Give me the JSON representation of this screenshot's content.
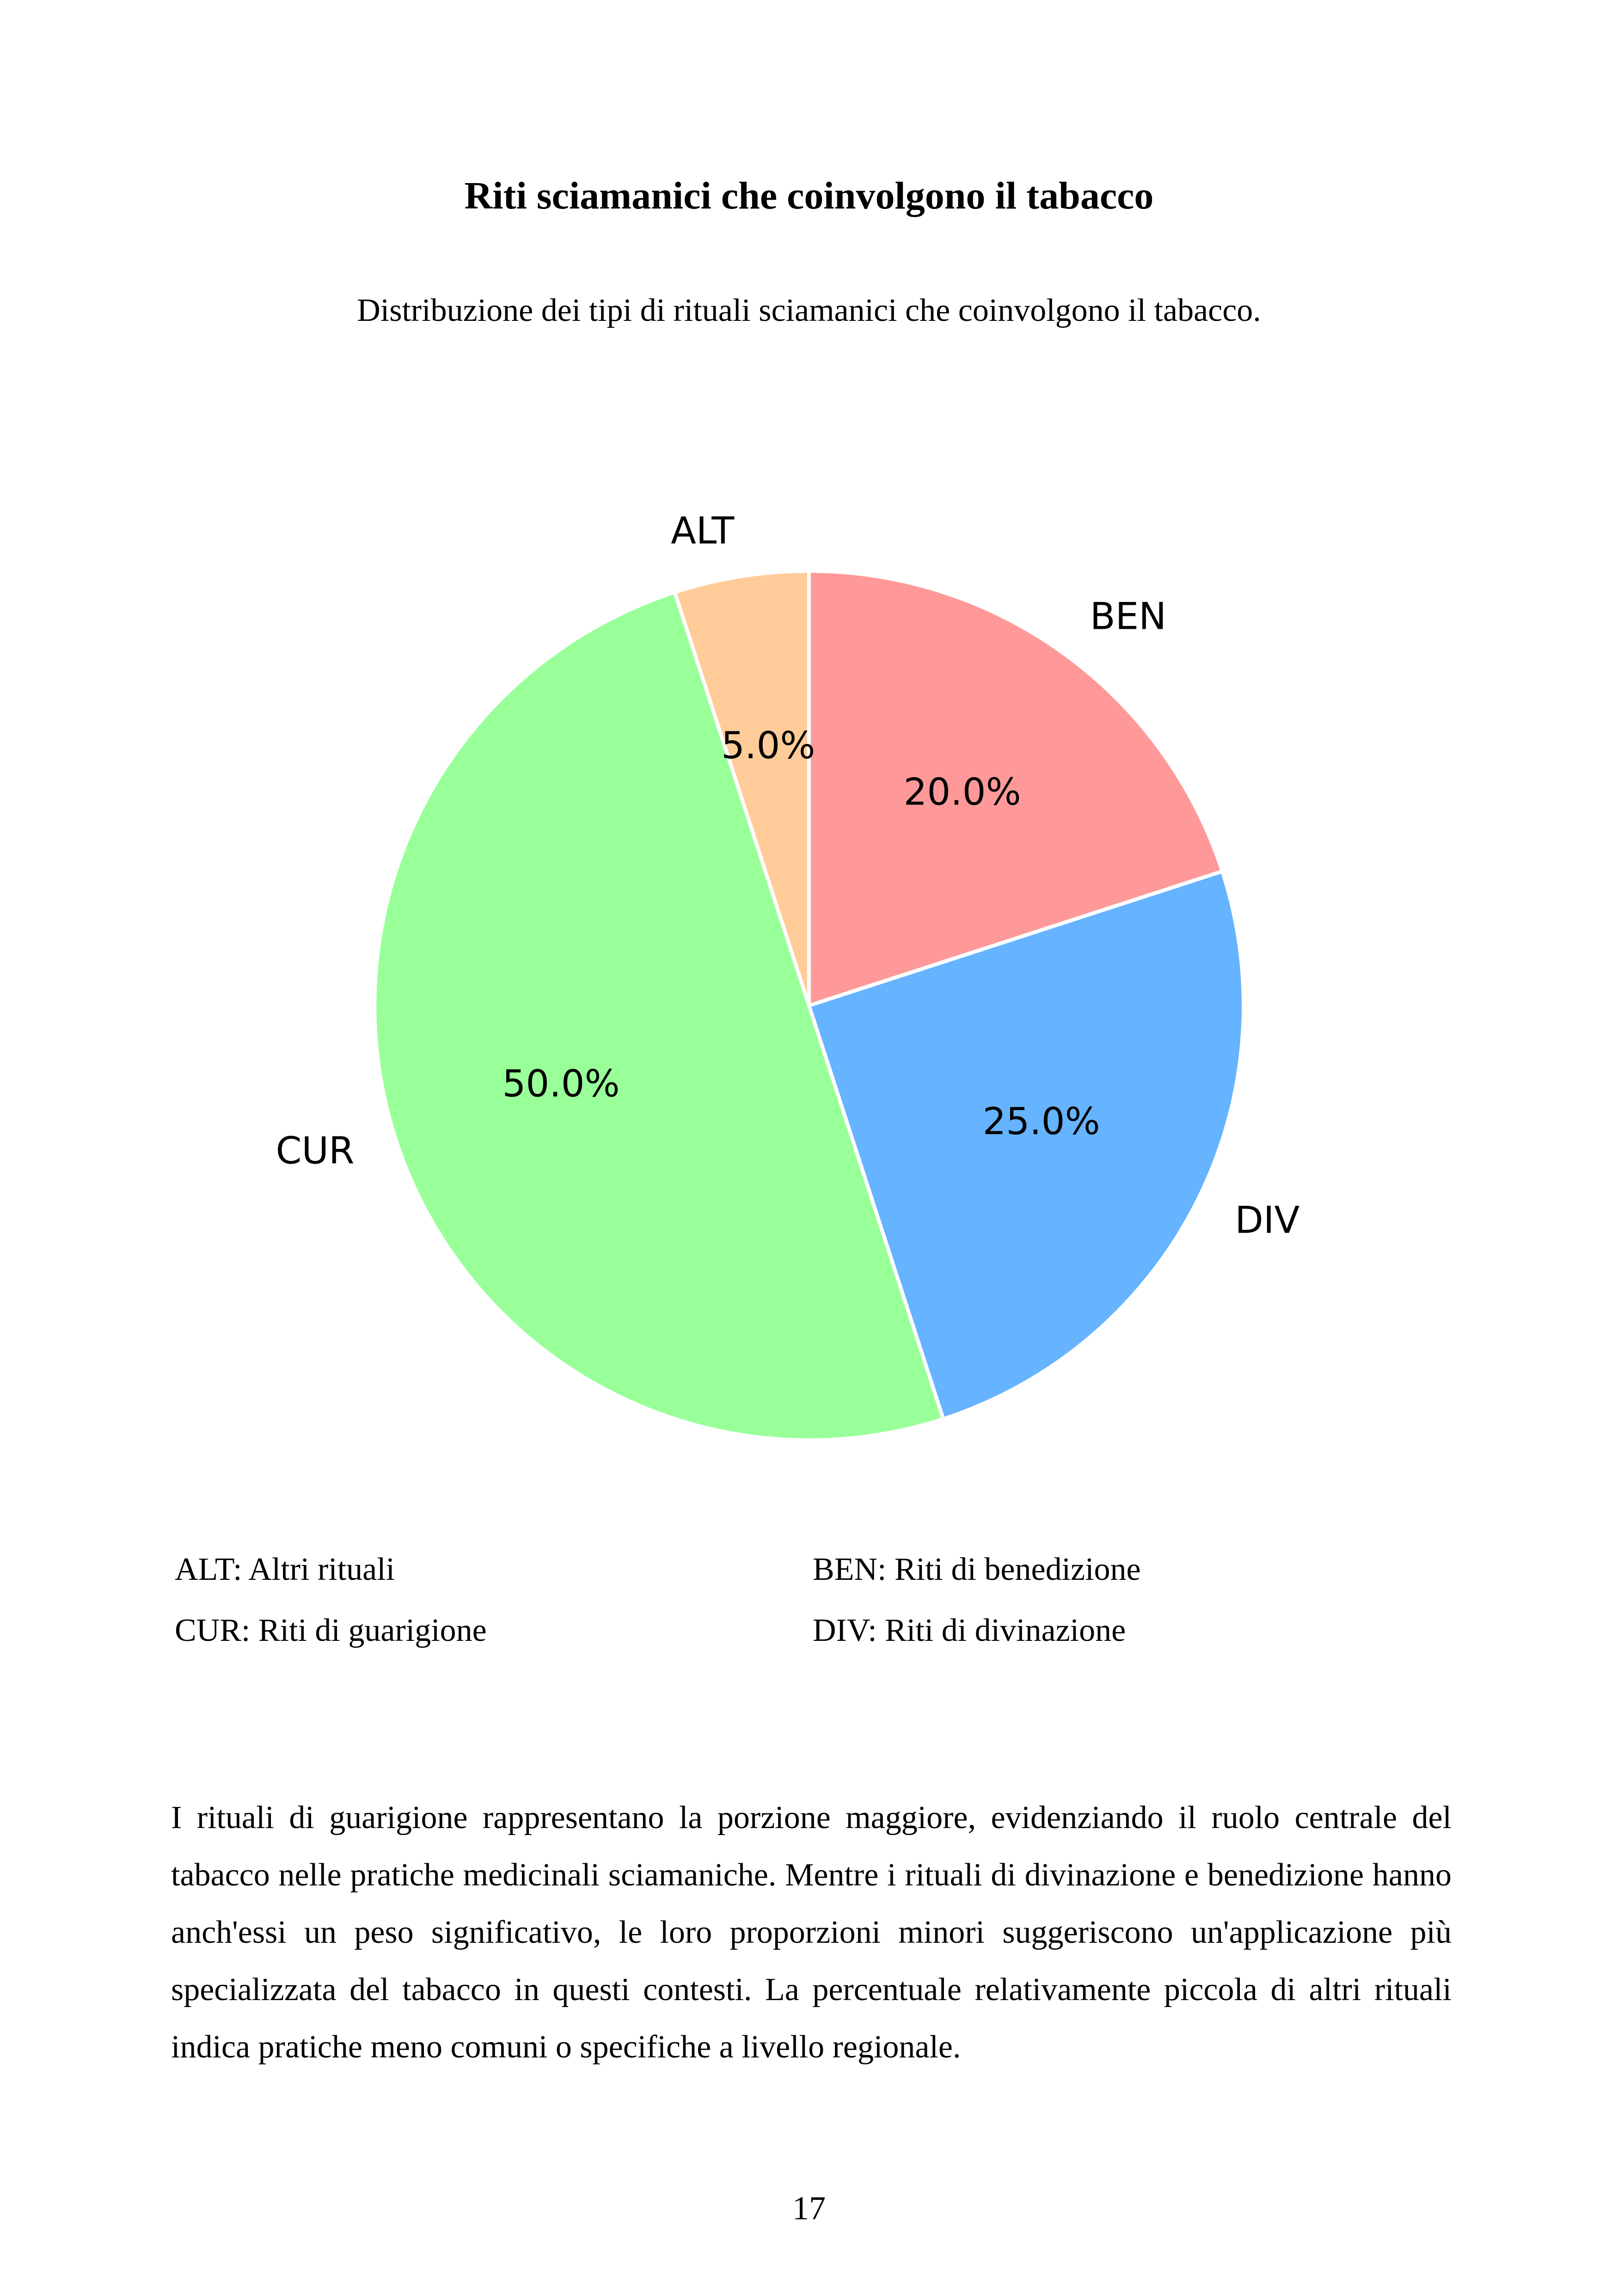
{
  "page": {
    "title": "Riti sciamanici che coinvolgono il tabacco",
    "subtitle": "Distribuzione dei tipi di rituali sciamanici che coinvolgono il tabacco.",
    "legend": [
      {
        "code": "ALT",
        "text": "ALT: Altri rituali"
      },
      {
        "code": "BEN",
        "text": "BEN: Riti di benedizione"
      },
      {
        "code": "CUR",
        "text": "CUR: Riti di guarigione"
      },
      {
        "code": "DIV",
        "text": "DIV: Riti di divinazione"
      }
    ],
    "paragraph": "I rituali di guarigione rappresentano la porzione maggiore, evidenziando il ruolo centrale del tabacco nelle pratiche medicinali sciamaniche. Mentre i rituali di divinazione e benedizione hanno anch'essi un peso significativo, le loro proporzioni minori suggeriscono un'applicazione più specializzata del tabacco in questi contesti. La percentuale relativamente piccola di altri rituali indica pratiche meno comuni o specifiche a livello regionale.",
    "page_number": "17"
  },
  "chart_data": {
    "type": "pie",
    "start_angle": "top, clockwise",
    "slices": [
      {
        "label": "BEN",
        "value": 20.0,
        "pct_label": "20.0%",
        "color": "#ff9999"
      },
      {
        "label": "DIV",
        "value": 25.0,
        "pct_label": "25.0%",
        "color": "#66b3ff"
      },
      {
        "label": "CUR",
        "value": 50.0,
        "pct_label": "50.0%",
        "color": "#99ff99"
      },
      {
        "label": "ALT",
        "value": 5.0,
        "pct_label": "5.0%",
        "color": "#ffcc99"
      }
    ]
  }
}
